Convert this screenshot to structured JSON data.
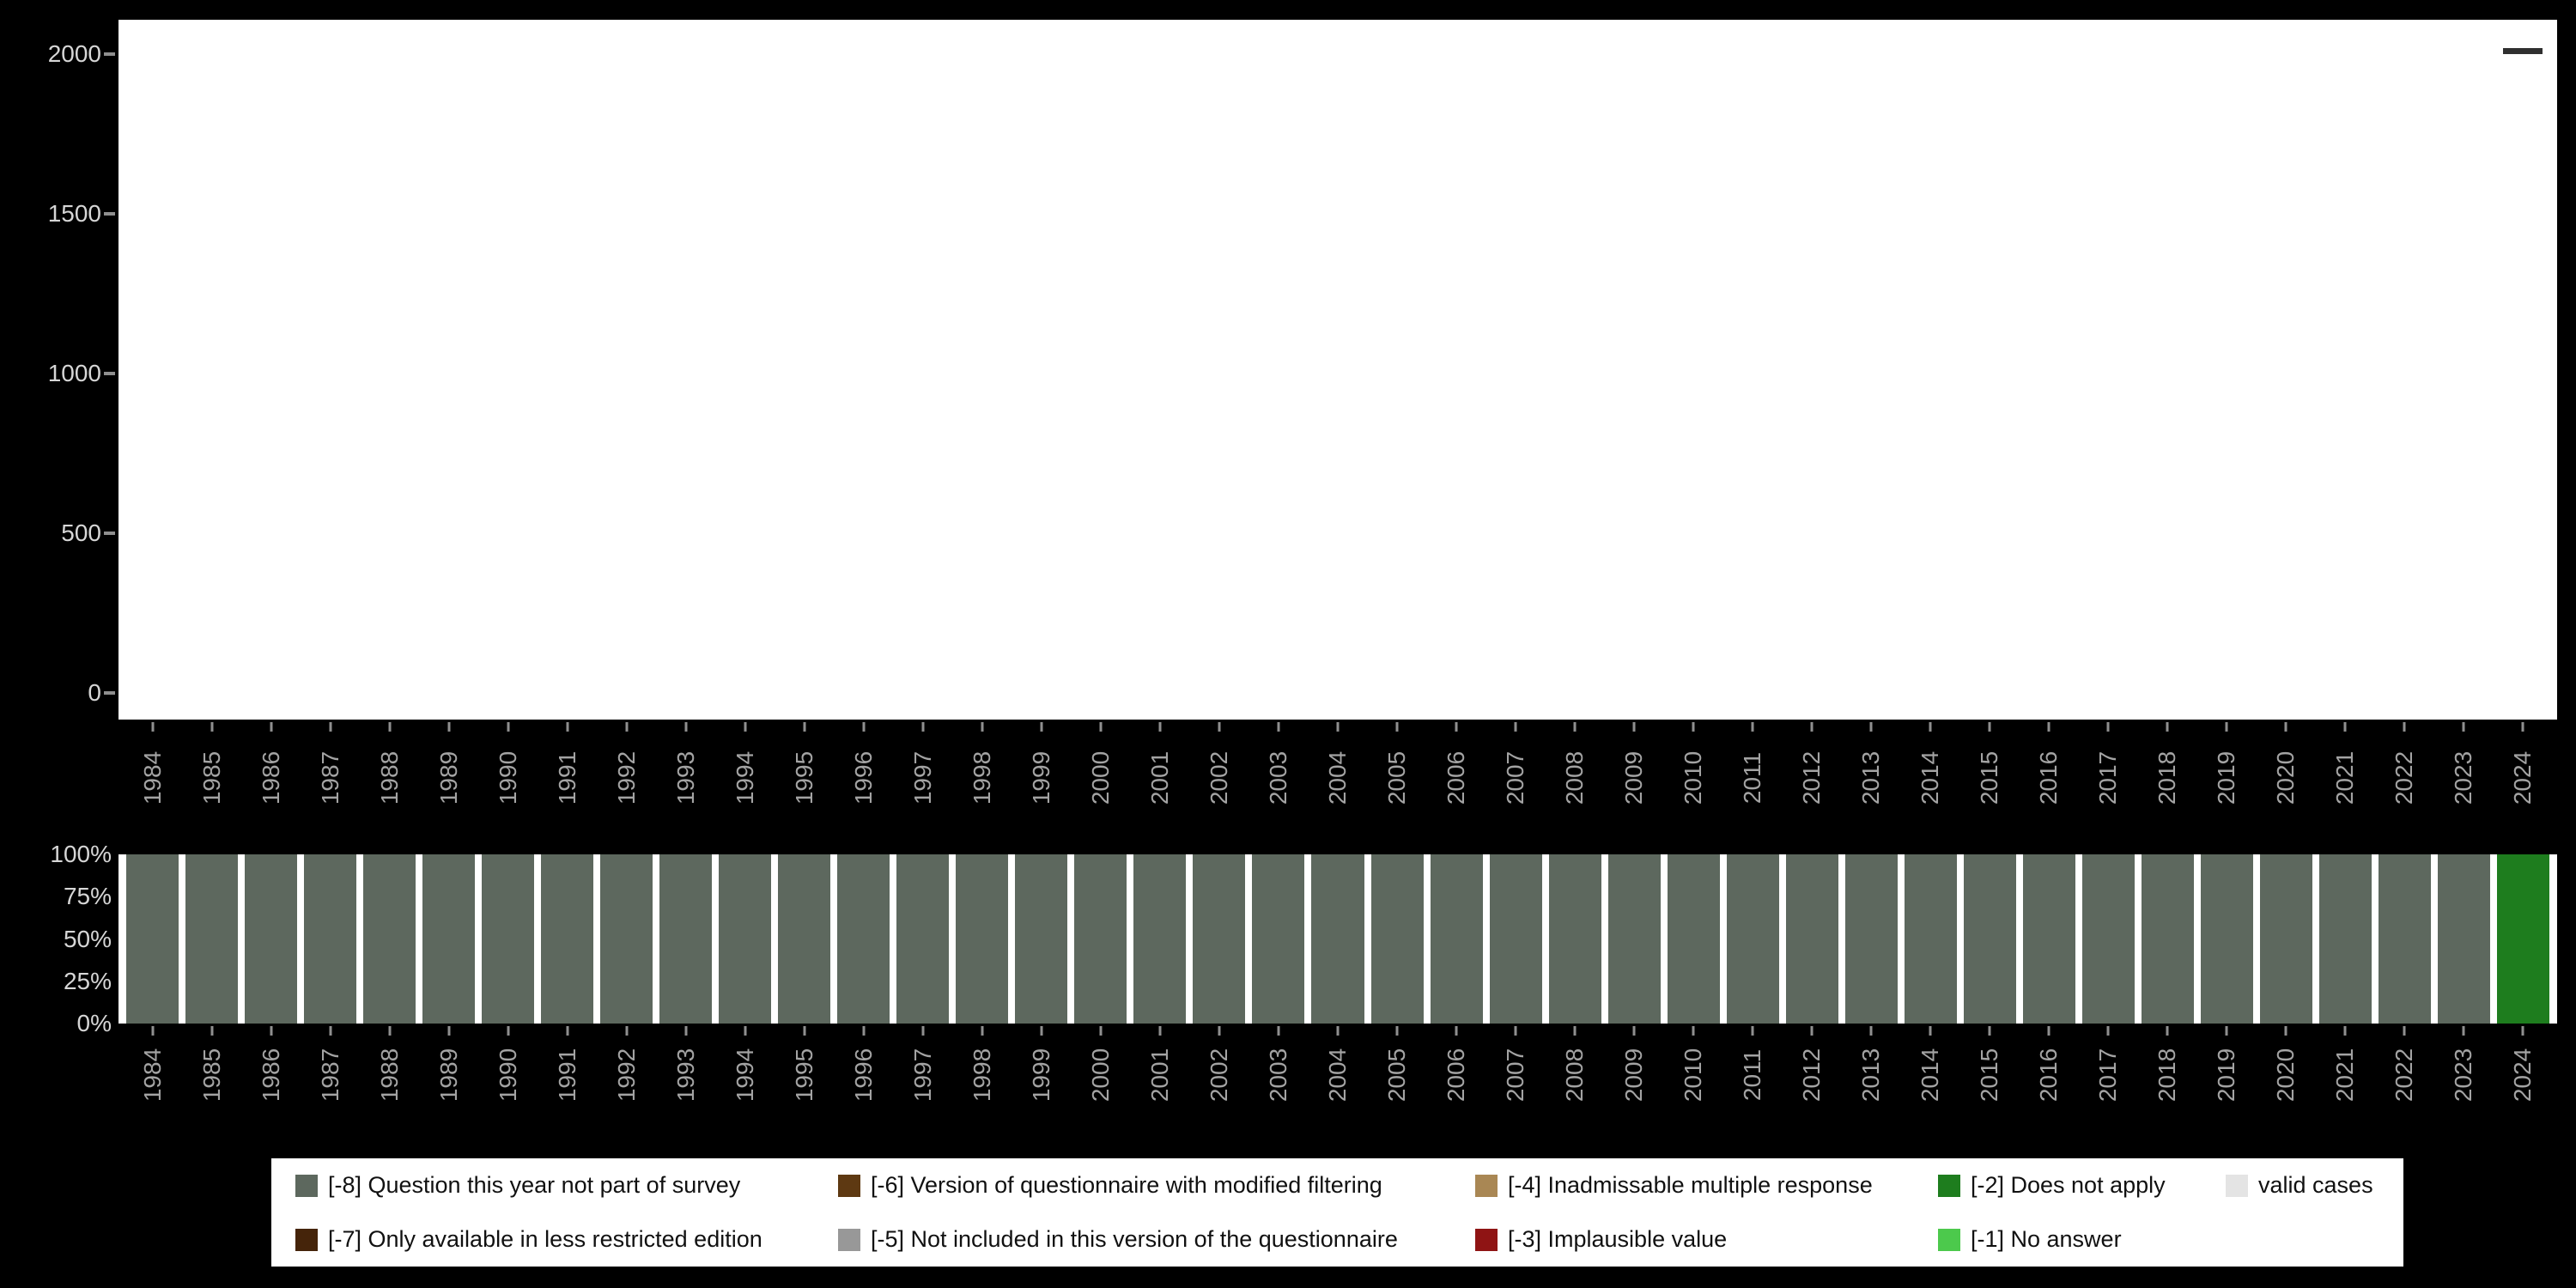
{
  "colors": {
    "background": "#000000",
    "plot_background": "#ffffff",
    "y_axis_label": "#d6d6d6",
    "x_axis_label": "#a3a3a3",
    "tick": "#8f8f8f",
    "legend_background": "#ffffff",
    "legend_text": "#111111"
  },
  "chart_data": [
    {
      "type": "bar",
      "title": "",
      "xlabel": "",
      "ylabel": "",
      "ylim": [
        0,
        2000
      ],
      "y_ticks": [
        0,
        500,
        1000,
        1500,
        2000
      ],
      "grid": false,
      "note": "Plot area is empty (white) except a short dark horizontal dash above the 2024 column at approximately y=2010.",
      "x": [
        "1984",
        "1985",
        "1986",
        "1987",
        "1988",
        "1989",
        "1990",
        "1991",
        "1992",
        "1993",
        "1994",
        "1995",
        "1996",
        "1997",
        "1998",
        "1999",
        "2000",
        "2001",
        "2002",
        "2003",
        "2004",
        "2005",
        "2006",
        "2007",
        "2008",
        "2009",
        "2010",
        "2011",
        "2012",
        "2013",
        "2014",
        "2015",
        "2016",
        "2017",
        "2018",
        "2019",
        "2020",
        "2021",
        "2022",
        "2023",
        "2024"
      ],
      "series": [
        {
          "name": "cases marker",
          "color": "#2f2f2f",
          "values": [
            null,
            null,
            null,
            null,
            null,
            null,
            null,
            null,
            null,
            null,
            null,
            null,
            null,
            null,
            null,
            null,
            null,
            null,
            null,
            null,
            null,
            null,
            null,
            null,
            null,
            null,
            null,
            null,
            null,
            null,
            null,
            null,
            null,
            null,
            null,
            null,
            null,
            null,
            null,
            null,
            2010
          ]
        }
      ]
    },
    {
      "type": "bar",
      "variant": "stacked-100-percent",
      "title": "",
      "xlabel": "",
      "ylabel": "",
      "ylim": [
        0,
        100
      ],
      "y_tick_labels": [
        "0%",
        "25%",
        "50%",
        "75%",
        "100%"
      ],
      "legend_position": "bottom",
      "categories": [
        "1984",
        "1985",
        "1986",
        "1987",
        "1988",
        "1989",
        "1990",
        "1991",
        "1992",
        "1993",
        "1994",
        "1995",
        "1996",
        "1997",
        "1998",
        "1999",
        "2000",
        "2001",
        "2002",
        "2003",
        "2004",
        "2005",
        "2006",
        "2007",
        "2008",
        "2009",
        "2010",
        "2011",
        "2012",
        "2013",
        "2014",
        "2015",
        "2016",
        "2017",
        "2018",
        "2019",
        "2020",
        "2021",
        "2022",
        "2023",
        "2024"
      ],
      "series": [
        {
          "name": "[-8] Question this year not part of survey",
          "color": "#5d685e",
          "values": [
            100,
            100,
            100,
            100,
            100,
            100,
            100,
            100,
            100,
            100,
            100,
            100,
            100,
            100,
            100,
            100,
            100,
            100,
            100,
            100,
            100,
            100,
            100,
            100,
            100,
            100,
            100,
            100,
            100,
            100,
            100,
            100,
            100,
            100,
            100,
            100,
            100,
            100,
            100,
            100,
            0
          ]
        },
        {
          "name": "[-2] Does not apply",
          "color": "#1e7d1e",
          "values": [
            0,
            0,
            0,
            0,
            0,
            0,
            0,
            0,
            0,
            0,
            0,
            0,
            0,
            0,
            0,
            0,
            0,
            0,
            0,
            0,
            0,
            0,
            0,
            0,
            0,
            0,
            0,
            0,
            0,
            0,
            0,
            0,
            0,
            0,
            0,
            0,
            0,
            0,
            0,
            0,
            100
          ]
        }
      ]
    }
  ],
  "legend": {
    "rows": [
      [
        {
          "label": "[-8] Question this year not part of survey",
          "color": "#5d685e"
        },
        {
          "label": "[-6] Version of questionnaire with modified filtering",
          "color": "#5e3912"
        },
        {
          "label": "[-4] Inadmissable multiple response",
          "color": "#a98754"
        },
        {
          "label": "[-2] Does not apply",
          "color": "#1e7d1e"
        },
        {
          "label": "valid cases",
          "color": "#e4e4e4"
        }
      ],
      [
        {
          "label": "[-7] Only available in less restricted edition",
          "color": "#45240a"
        },
        {
          "label": "[-5] Not included in this version of the questionnaire",
          "color": "#989898"
        },
        {
          "label": "[-3] Implausible value",
          "color": "#8f1414"
        },
        {
          "label": "[-1] No answer",
          "color": "#4cc94c"
        }
      ]
    ]
  }
}
